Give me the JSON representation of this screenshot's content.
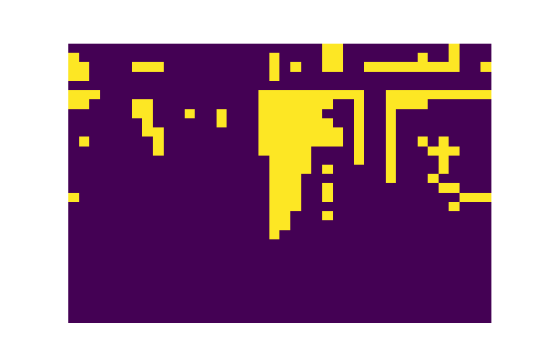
{
  "chart_data": {
    "type": "heatmap",
    "tick_labels": false,
    "cells": [
      [
        0,
        0,
        0,
        0,
        0,
        0,
        0,
        0,
        0,
        0,
        0,
        0,
        0,
        0,
        0,
        0,
        0,
        0,
        0,
        0,
        0,
        0,
        0,
        0,
        1,
        1,
        0,
        0,
        0,
        0,
        0,
        0,
        0,
        0,
        0,
        0,
        1,
        0,
        0,
        0
      ],
      [
        1,
        0,
        0,
        0,
        0,
        0,
        0,
        0,
        0,
        0,
        0,
        0,
        0,
        0,
        0,
        0,
        0,
        0,
        0,
        1,
        0,
        0,
        0,
        0,
        1,
        1,
        0,
        0,
        0,
        0,
        0,
        0,
        0,
        1,
        0,
        0,
        1,
        0,
        0,
        0
      ],
      [
        1,
        1,
        0,
        0,
        0,
        0,
        1,
        1,
        1,
        0,
        0,
        0,
        0,
        0,
        0,
        0,
        0,
        0,
        0,
        1,
        0,
        1,
        0,
        0,
        1,
        1,
        0,
        0,
        1,
        1,
        1,
        1,
        1,
        1,
        1,
        1,
        1,
        0,
        0,
        1
      ],
      [
        1,
        1,
        0,
        0,
        0,
        0,
        0,
        0,
        0,
        0,
        0,
        0,
        0,
        0,
        0,
        0,
        0,
        0,
        0,
        1,
        0,
        0,
        0,
        0,
        0,
        0,
        0,
        0,
        0,
        0,
        0,
        0,
        0,
        0,
        0,
        0,
        0,
        0,
        0,
        0
      ],
      [
        0,
        0,
        0,
        0,
        0,
        0,
        0,
        0,
        0,
        0,
        0,
        0,
        0,
        0,
        0,
        0,
        0,
        0,
        0,
        0,
        0,
        0,
        0,
        0,
        0,
        0,
        0,
        0,
        0,
        0,
        0,
        0,
        0,
        0,
        0,
        0,
        0,
        0,
        0,
        0
      ],
      [
        1,
        1,
        1,
        0,
        0,
        0,
        0,
        0,
        0,
        0,
        0,
        0,
        0,
        0,
        0,
        0,
        0,
        0,
        1,
        1,
        1,
        1,
        1,
        1,
        1,
        1,
        1,
        1,
        0,
        0,
        1,
        1,
        1,
        1,
        1,
        1,
        1,
        1,
        1,
        1
      ],
      [
        1,
        1,
        0,
        0,
        0,
        0,
        1,
        1,
        0,
        0,
        0,
        0,
        0,
        0,
        0,
        0,
        0,
        0,
        1,
        1,
        1,
        1,
        1,
        1,
        1,
        0,
        0,
        1,
        0,
        0,
        1,
        1,
        1,
        1,
        0,
        0,
        0,
        0,
        0,
        0
      ],
      [
        0,
        0,
        0,
        0,
        0,
        0,
        1,
        1,
        0,
        0,
        0,
        1,
        0,
        0,
        1,
        0,
        0,
        0,
        1,
        1,
        1,
        1,
        1,
        1,
        0,
        0,
        0,
        1,
        0,
        0,
        1,
        0,
        0,
        0,
        0,
        0,
        0,
        0,
        0,
        0
      ],
      [
        0,
        0,
        0,
        0,
        0,
        0,
        0,
        1,
        0,
        0,
        0,
        0,
        0,
        0,
        1,
        0,
        0,
        0,
        1,
        1,
        1,
        1,
        1,
        1,
        1,
        0,
        0,
        1,
        0,
        0,
        1,
        0,
        0,
        0,
        0,
        0,
        0,
        0,
        0,
        0
      ],
      [
        0,
        0,
        0,
        0,
        0,
        0,
        0,
        1,
        1,
        0,
        0,
        0,
        0,
        0,
        0,
        0,
        0,
        0,
        1,
        1,
        1,
        1,
        1,
        1,
        1,
        1,
        0,
        1,
        0,
        0,
        1,
        0,
        0,
        0,
        0,
        0,
        0,
        0,
        0,
        0
      ],
      [
        0,
        1,
        0,
        0,
        0,
        0,
        0,
        0,
        1,
        0,
        0,
        0,
        0,
        0,
        0,
        0,
        0,
        0,
        1,
        1,
        1,
        1,
        1,
        1,
        1,
        1,
        0,
        1,
        0,
        0,
        1,
        0,
        0,
        1,
        0,
        1,
        0,
        0,
        0,
        0
      ],
      [
        0,
        0,
        0,
        0,
        0,
        0,
        0,
        0,
        1,
        0,
        0,
        0,
        0,
        0,
        0,
        0,
        0,
        0,
        1,
        1,
        1,
        1,
        1,
        0,
        0,
        0,
        0,
        1,
        0,
        0,
        1,
        0,
        0,
        0,
        1,
        1,
        1,
        0,
        0,
        0
      ],
      [
        0,
        0,
        0,
        0,
        0,
        0,
        0,
        0,
        0,
        0,
        0,
        0,
        0,
        0,
        0,
        0,
        0,
        0,
        0,
        1,
        1,
        1,
        1,
        0,
        0,
        0,
        0,
        1,
        0,
        0,
        1,
        0,
        0,
        0,
        0,
        1,
        0,
        0,
        0,
        0
      ],
      [
        0,
        0,
        0,
        0,
        0,
        0,
        0,
        0,
        0,
        0,
        0,
        0,
        0,
        0,
        0,
        0,
        0,
        0,
        0,
        1,
        1,
        1,
        1,
        0,
        1,
        0,
        0,
        0,
        0,
        0,
        1,
        0,
        0,
        0,
        0,
        1,
        0,
        0,
        0,
        0
      ],
      [
        0,
        0,
        0,
        0,
        0,
        0,
        0,
        0,
        0,
        0,
        0,
        0,
        0,
        0,
        0,
        0,
        0,
        0,
        0,
        1,
        1,
        1,
        0,
        0,
        0,
        0,
        0,
        0,
        0,
        0,
        1,
        0,
        0,
        0,
        1,
        0,
        0,
        0,
        0,
        0
      ],
      [
        0,
        0,
        0,
        0,
        0,
        0,
        0,
        0,
        0,
        0,
        0,
        0,
        0,
        0,
        0,
        0,
        0,
        0,
        0,
        1,
        1,
        1,
        0,
        0,
        1,
        0,
        0,
        0,
        0,
        0,
        0,
        0,
        0,
        0,
        0,
        1,
        1,
        0,
        0,
        0
      ],
      [
        1,
        0,
        0,
        0,
        0,
        0,
        0,
        0,
        0,
        0,
        0,
        0,
        0,
        0,
        0,
        0,
        0,
        0,
        0,
        1,
        1,
        1,
        0,
        0,
        1,
        0,
        0,
        0,
        0,
        0,
        0,
        0,
        0,
        0,
        0,
        0,
        0,
        1,
        1,
        1
      ],
      [
        0,
        0,
        0,
        0,
        0,
        0,
        0,
        0,
        0,
        0,
        0,
        0,
        0,
        0,
        0,
        0,
        0,
        0,
        0,
        1,
        1,
        1,
        0,
        0,
        0,
        0,
        0,
        0,
        0,
        0,
        0,
        0,
        0,
        0,
        0,
        0,
        1,
        0,
        0,
        0
      ],
      [
        0,
        0,
        0,
        0,
        0,
        0,
        0,
        0,
        0,
        0,
        0,
        0,
        0,
        0,
        0,
        0,
        0,
        0,
        0,
        1,
        1,
        0,
        0,
        0,
        1,
        0,
        0,
        0,
        0,
        0,
        0,
        0,
        0,
        0,
        0,
        0,
        0,
        0,
        0,
        0
      ],
      [
        0,
        0,
        0,
        0,
        0,
        0,
        0,
        0,
        0,
        0,
        0,
        0,
        0,
        0,
        0,
        0,
        0,
        0,
        0,
        1,
        1,
        0,
        0,
        0,
        0,
        0,
        0,
        0,
        0,
        0,
        0,
        0,
        0,
        0,
        0,
        0,
        0,
        0,
        0,
        0
      ],
      [
        0,
        0,
        0,
        0,
        0,
        0,
        0,
        0,
        0,
        0,
        0,
        0,
        0,
        0,
        0,
        0,
        0,
        0,
        0,
        1,
        0,
        0,
        0,
        0,
        0,
        0,
        0,
        0,
        0,
        0,
        0,
        0,
        0,
        0,
        0,
        0,
        0,
        0,
        0,
        0
      ],
      [
        0,
        0,
        0,
        0,
        0,
        0,
        0,
        0,
        0,
        0,
        0,
        0,
        0,
        0,
        0,
        0,
        0,
        0,
        0,
        0,
        0,
        0,
        0,
        0,
        0,
        0,
        0,
        0,
        0,
        0,
        0,
        0,
        0,
        0,
        0,
        0,
        0,
        0,
        0,
        0
      ],
      [
        0,
        0,
        0,
        0,
        0,
        0,
        0,
        0,
        0,
        0,
        0,
        0,
        0,
        0,
        0,
        0,
        0,
        0,
        0,
        0,
        0,
        0,
        0,
        0,
        0,
        0,
        0,
        0,
        0,
        0,
        0,
        0,
        0,
        0,
        0,
        0,
        0,
        0,
        0,
        0
      ],
      [
        0,
        0,
        0,
        0,
        0,
        0,
        0,
        0,
        0,
        0,
        0,
        0,
        0,
        0,
        0,
        0,
        0,
        0,
        0,
        0,
        0,
        0,
        0,
        0,
        0,
        0,
        0,
        0,
        0,
        0,
        0,
        0,
        0,
        0,
        0,
        0,
        0,
        0,
        0,
        0
      ],
      [
        0,
        0,
        0,
        0,
        0,
        0,
        0,
        0,
        0,
        0,
        0,
        0,
        0,
        0,
        0,
        0,
        0,
        0,
        0,
        0,
        0,
        0,
        0,
        0,
        0,
        0,
        0,
        0,
        0,
        0,
        0,
        0,
        0,
        0,
        0,
        0,
        0,
        0,
        0,
        0
      ],
      [
        0,
        0,
        0,
        0,
        0,
        0,
        0,
        0,
        0,
        0,
        0,
        0,
        0,
        0,
        0,
        0,
        0,
        0,
        0,
        0,
        0,
        0,
        0,
        0,
        0,
        0,
        0,
        0,
        0,
        0,
        0,
        0,
        0,
        0,
        0,
        0,
        0,
        0,
        0,
        0
      ],
      [
        0,
        0,
        0,
        0,
        0,
        0,
        0,
        0,
        0,
        0,
        0,
        0,
        0,
        0,
        0,
        0,
        0,
        0,
        0,
        0,
        0,
        0,
        0,
        0,
        0,
        0,
        0,
        0,
        0,
        0,
        0,
        0,
        0,
        0,
        0,
        0,
        0,
        0,
        0,
        0
      ],
      [
        0,
        0,
        0,
        0,
        0,
        0,
        0,
        0,
        0,
        0,
        0,
        0,
        0,
        0,
        0,
        0,
        0,
        0,
        0,
        0,
        0,
        0,
        0,
        0,
        0,
        0,
        0,
        0,
        0,
        0,
        0,
        0,
        0,
        0,
        0,
        0,
        0,
        0,
        0,
        0
      ],
      [
        0,
        0,
        0,
        0,
        0,
        0,
        0,
        0,
        0,
        0,
        0,
        0,
        0,
        0,
        0,
        0,
        0,
        0,
        0,
        0,
        0,
        0,
        0,
        0,
        0,
        0,
        0,
        0,
        0,
        0,
        0,
        0,
        0,
        0,
        0,
        0,
        0,
        0,
        0,
        0
      ],
      [
        0,
        0,
        0,
        0,
        0,
        0,
        0,
        0,
        0,
        0,
        0,
        0,
        0,
        0,
        0,
        0,
        0,
        0,
        0,
        0,
        0,
        0,
        0,
        0,
        0,
        0,
        0,
        0,
        0,
        0,
        0,
        0,
        0,
        0,
        0,
        0,
        0,
        0,
        0,
        0
      ]
    ]
  }
}
